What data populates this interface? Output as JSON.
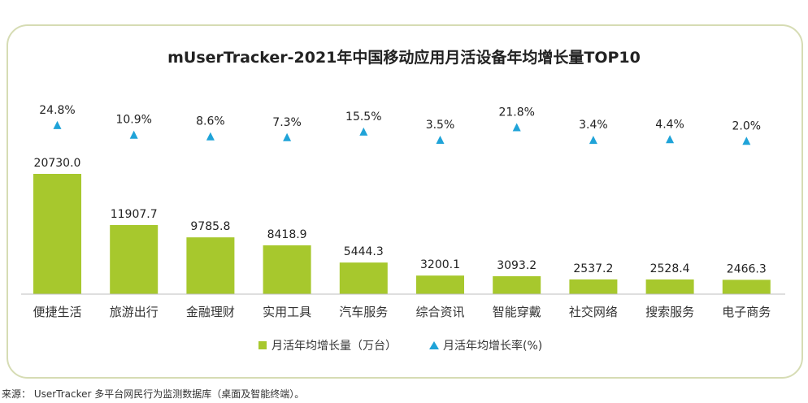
{
  "chart_data": {
    "type": "bar",
    "title": "mUserTracker-2021年中国移动应用月活设备年均增长量TOP10",
    "categories": [
      "便捷生活",
      "旅游出行",
      "金融理财",
      "实用工具",
      "汽车服务",
      "综合资讯",
      "智能穿戴",
      "社交网络",
      "搜索服务",
      "电子商务"
    ],
    "series": [
      {
        "name": "月活年均增长量（万台）",
        "type": "bar",
        "values": [
          20730.0,
          11907.7,
          9785.8,
          8418.9,
          5444.3,
          3200.1,
          3093.2,
          2537.2,
          2528.4,
          2466.3
        ],
        "labels": [
          "20730.0",
          "11907.7",
          "9785.8",
          "8418.9",
          "5444.3",
          "3200.1",
          "3093.2",
          "2537.2",
          "2528.4",
          "2466.3"
        ],
        "color": "#a7c82d"
      },
      {
        "name": "月活年均增长率(%)",
        "type": "marker",
        "values": [
          24.8,
          10.9,
          8.6,
          7.3,
          15.5,
          3.5,
          21.8,
          3.4,
          4.4,
          2.0
        ],
        "labels": [
          "24.8%",
          "10.9%",
          "8.6%",
          "7.3%",
          "15.5%",
          "3.5%",
          "21.8%",
          "3.4%",
          "4.4%",
          "2.0%"
        ],
        "color": "#1fa3d8"
      }
    ],
    "legend_position": "bottom-center",
    "grid": false
  },
  "source_text": "来源： UserTracker 多平台网民行为监测数据库（桌面及智能终端）。"
}
